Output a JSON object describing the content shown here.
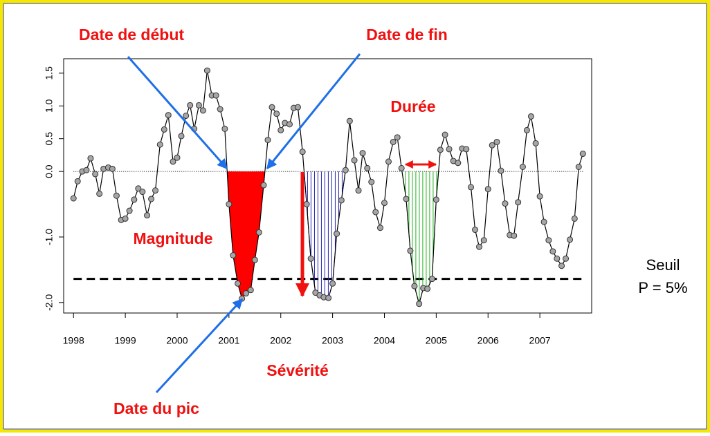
{
  "chart_data": {
    "type": "line",
    "x": [
      1998,
      1998.08,
      1998.17,
      1998.25,
      1998.33,
      1998.42,
      1998.5,
      1998.58,
      1998.67,
      1998.75,
      1998.83,
      1998.92,
      1999,
      1999.08,
      1999.17,
      1999.25,
      1999.33,
      1999.42,
      1999.5,
      1999.58,
      1999.67,
      1999.75,
      1999.83,
      1999.92,
      2000,
      2000.08,
      2000.17,
      2000.25,
      2000.33,
      2000.42,
      2000.5,
      2000.58,
      2000.67,
      2000.75,
      2000.83,
      2000.92,
      2001,
      2001.08,
      2001.17,
      2001.25,
      2001.33,
      2001.42,
      2001.5,
      2001.58,
      2001.67,
      2001.75,
      2001.83,
      2001.92,
      2002,
      2002.08,
      2002.17,
      2002.25,
      2002.33,
      2002.42,
      2002.5,
      2002.58,
      2002.67,
      2002.75,
      2002.83,
      2002.92,
      2003,
      2003.08,
      2003.17,
      2003.25,
      2003.33,
      2003.42,
      2003.5,
      2003.58,
      2003.67,
      2003.75,
      2003.83,
      2003.92,
      2004,
      2004.08,
      2004.17,
      2004.25,
      2004.33,
      2004.42,
      2004.5,
      2004.58,
      2004.67,
      2004.75,
      2004.83,
      2004.92,
      2005,
      2005.08,
      2005.17,
      2005.25,
      2005.33,
      2005.42,
      2005.5,
      2005.58,
      2005.67,
      2005.75,
      2005.83,
      2005.92,
      2006,
      2006.08,
      2006.17,
      2006.25,
      2006.33,
      2006.42,
      2006.5,
      2006.58,
      2006.67,
      2006.75,
      2006.83,
      2006.92,
      2007,
      2007.08,
      2007.17,
      2007.25,
      2007.33,
      2007.42,
      2007.5,
      2007.58,
      2007.67,
      2007.75,
      2007.83
    ],
    "values": [
      -0.41,
      -0.15,
      0.0,
      0.02,
      0.2,
      -0.04,
      -0.34,
      0.04,
      0.06,
      0.04,
      -0.37,
      -0.74,
      -0.72,
      -0.6,
      -0.43,
      -0.26,
      -0.31,
      -0.67,
      -0.42,
      -0.29,
      0.41,
      0.64,
      0.86,
      0.15,
      0.21,
      0.54,
      0.85,
      1.01,
      0.65,
      1.01,
      0.93,
      1.54,
      1.16,
      1.16,
      0.95,
      0.65,
      -0.5,
      -1.28,
      -1.71,
      -1.94,
      -1.86,
      -1.81,
      -1.35,
      -0.93,
      -0.21,
      0.48,
      0.98,
      0.88,
      0.63,
      0.74,
      0.72,
      0.97,
      0.98,
      0.3,
      -0.5,
      -1.33,
      -1.85,
      -1.89,
      -1.92,
      -1.93,
      -1.71,
      -0.95,
      -0.44,
      0.02,
      0.77,
      0.17,
      -0.29,
      0.28,
      0.05,
      -0.16,
      -0.62,
      -0.86,
      -0.48,
      0.15,
      0.45,
      0.52,
      0.05,
      -0.42,
      -1.21,
      -1.75,
      -2.02,
      -1.78,
      -1.79,
      -1.64,
      -0.43,
      0.33,
      0.56,
      0.34,
      0.16,
      0.13,
      0.35,
      0.34,
      -0.24,
      -0.89,
      -1.15,
      -1.05,
      -0.27,
      0.4,
      0.45,
      0.01,
      -0.49,
      -0.97,
      -0.98,
      -0.47,
      0.07,
      0.63,
      0.84,
      0.43,
      -0.38,
      -0.77,
      -1.05,
      -1.22,
      -1.33,
      -1.44,
      -1.33,
      -1.04,
      -0.72,
      0.07,
      0.27
    ],
    "color": "#000000",
    "marker_color": "#a6a6a6",
    "xlim": [
      1997.81,
      2008
    ],
    "xticks": [
      1998,
      1999,
      2000,
      2001,
      2002,
      2003,
      2004,
      2005,
      2006,
      2007
    ],
    "ylim": [
      -2.16,
      1.72
    ],
    "yticks": [
      1.5,
      {
        "value": 1,
        "label": "1.0"
      },
      0.5,
      {
        "value": 0,
        "label": "0.0"
      },
      {
        "value": -1,
        "label": "-1.0"
      },
      {
        "value": -2,
        "label": "-2.0"
      }
    ],
    "threshold": -1.64,
    "zero_line": true,
    "event_colors": [
      "#ff0000",
      "#2020b0",
      "#20b020"
    ],
    "event_fills": [
      "solid",
      "hatch",
      "hatch"
    ],
    "annotations": {
      "start": "Date de début",
      "end": "Date de fin",
      "duration": "Durée",
      "magnitude": "Magnitude",
      "severity": "Sévérité",
      "peak": "Date du pic",
      "threshold_label": "Seuil",
      "threshold_p": "P = 5%"
    }
  }
}
